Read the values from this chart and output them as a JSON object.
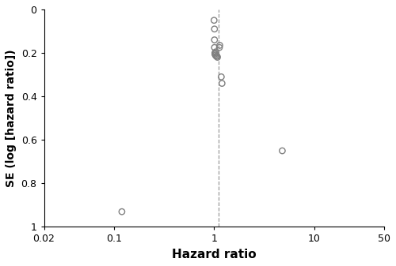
{
  "title": "",
  "xlabel": "Hazard ratio",
  "ylabel": "SE (log [hazard ratio])",
  "dashed_line_x": 1.1,
  "points": [
    [
      0.12,
      0.93
    ],
    [
      1.0,
      0.05
    ],
    [
      1.01,
      0.09
    ],
    [
      1.01,
      0.14
    ],
    [
      1.01,
      0.175
    ],
    [
      1.02,
      0.2
    ],
    [
      1.02,
      0.205
    ],
    [
      1.03,
      0.21
    ],
    [
      1.04,
      0.195
    ],
    [
      1.05,
      0.215
    ],
    [
      1.07,
      0.215
    ],
    [
      1.08,
      0.22
    ],
    [
      1.13,
      0.175
    ],
    [
      1.14,
      0.165
    ],
    [
      1.18,
      0.31
    ],
    [
      1.2,
      0.34
    ],
    [
      4.8,
      0.65
    ]
  ],
  "xlim_log": [
    0.02,
    50
  ],
  "ylim": [
    0,
    1.0
  ],
  "yticks": [
    0,
    0.2,
    0.4,
    0.6,
    0.8,
    1.0
  ],
  "xticks": [
    0.02,
    0.1,
    1,
    10,
    50
  ],
  "xtick_labels": [
    "0.02",
    "0.1",
    "1",
    "10",
    "50"
  ],
  "background_color": "#ffffff",
  "point_edgecolor": "#808080",
  "point_size": 28,
  "dashed_line_color": "#999999",
  "linewidth": 1.0,
  "figsize": [
    5.0,
    3.37
  ],
  "dpi": 100
}
